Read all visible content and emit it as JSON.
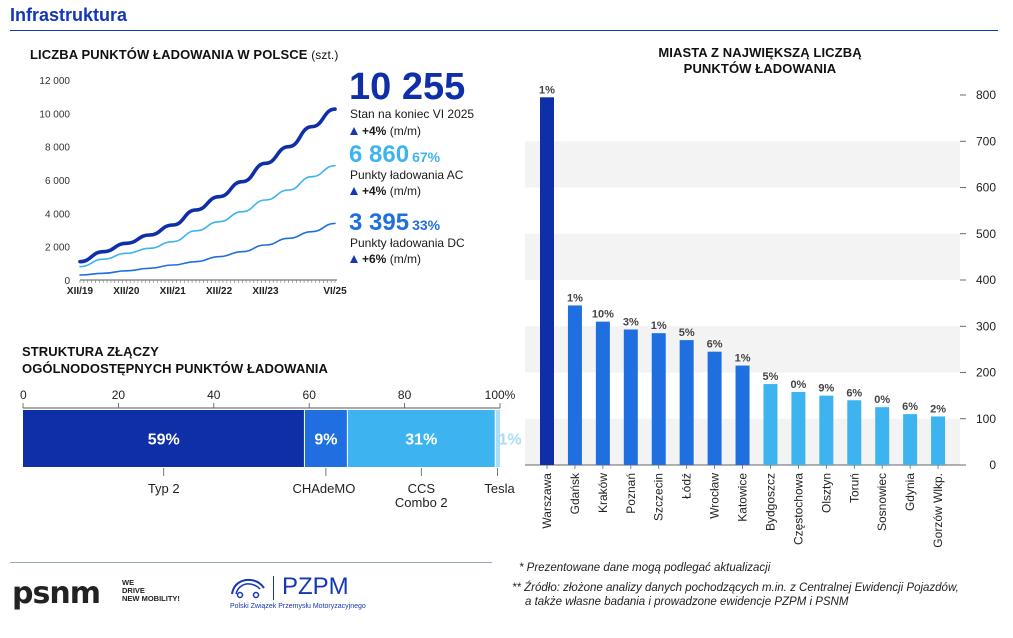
{
  "header": {
    "title": "Infrastruktura"
  },
  "line_section": {
    "title": "LICZBA PUNKTÓW ŁADOWANIA W POLSCE",
    "unit": "(szt.)"
  },
  "stats": {
    "total": {
      "value": "10 255",
      "label": "Stan na koniec VI 2025",
      "change": "+4%",
      "change_unit": "(m/m)"
    },
    "ac": {
      "value": "6 860",
      "share": "67%",
      "label": "Punkty ładowania AC",
      "change": "+4%",
      "change_unit": "(m/m)"
    },
    "dc": {
      "value": "3 395",
      "share": "33%",
      "label": "Punkty ładowania DC",
      "change": "+6%",
      "change_unit": "(m/m)"
    }
  },
  "connector_section": {
    "title_line1": "STRUKTURA ZŁĄCZY",
    "title_line2": "OGÓLNODOSTĘPNYCH PUNKTÓW ŁADOWANIA"
  },
  "cities_section": {
    "title_line1": "MIASTA Z NAJWIĘKSZĄ LICZBĄ",
    "title_line2": "PUNKTÓW ŁADOWANIA"
  },
  "footnotes": {
    "note1": "* Prezentowane dane mogą podlegać aktualizacji",
    "note2_line1": "** Źródło: złożone analizy danych pochodzących m.in. z Centralnej Ewidencji Pojazdów,",
    "note2_line2": "a także własne badania i prowadzone ewidencje PZPM i PSNM"
  },
  "logos": {
    "psnm": "psnm",
    "psnm_tag1": "WE",
    "psnm_tag2": "DRIVE",
    "psnm_tag3": "NEW MOBILITY!",
    "pzpm": "PZPM",
    "pzpm_sub": "Polski Związek Przemysłu Motoryzacyjnego"
  },
  "colors": {
    "dark_blue": "#0f2fa8",
    "mid_blue": "#1f6fe0",
    "light_blue": "#3db4ef",
    "pale_blue": "#a9ddf6",
    "accent": "#1437b4"
  },
  "chart_data": [
    {
      "type": "line",
      "title": "LICZBA PUNKTÓW ŁADOWANIA W POLSCE",
      "y_ticks": [
        "0",
        "2 000",
        "4 000",
        "6 000",
        "8 000",
        "10 000",
        "12 000"
      ],
      "ylim": [
        0,
        12000
      ],
      "x_tick_labels": [
        "XII/19",
        "XII/20",
        "XII/21",
        "XII/22",
        "XII/23",
        "VI/25"
      ],
      "x_range": [
        "2019-12",
        "2025-06"
      ],
      "series": [
        {
          "name": "Stan na koniec VI 2025",
          "color": "#0f2fa8",
          "x": [
            "2019-12",
            "2020-06",
            "2020-12",
            "2021-06",
            "2021-12",
            "2022-06",
            "2022-12",
            "2023-06",
            "2023-12",
            "2024-06",
            "2024-12",
            "2025-06"
          ],
          "values": [
            1100,
            1700,
            2200,
            2700,
            3300,
            4200,
            5000,
            5900,
            7000,
            8000,
            9200,
            10255
          ]
        },
        {
          "name": "Punkty ładowania AC",
          "color": "#3db4ef",
          "x": [
            "2019-12",
            "2020-06",
            "2020-12",
            "2021-06",
            "2021-12",
            "2022-06",
            "2022-12",
            "2023-06",
            "2023-12",
            "2024-06",
            "2024-12",
            "2025-06"
          ],
          "values": [
            800,
            1250,
            1600,
            1900,
            2300,
            2950,
            3500,
            4100,
            4800,
            5400,
            6200,
            6860
          ]
        },
        {
          "name": "Punkty ładowania DC",
          "color": "#1f6fe0",
          "x": [
            "2019-12",
            "2020-06",
            "2020-12",
            "2021-06",
            "2021-12",
            "2022-06",
            "2022-12",
            "2023-06",
            "2023-12",
            "2024-06",
            "2024-12",
            "2025-06"
          ],
          "values": [
            300,
            400,
            550,
            700,
            900,
            1100,
            1400,
            1700,
            2100,
            2500,
            2900,
            3395
          ]
        }
      ]
    },
    {
      "type": "bar",
      "title": "STRUKTURA ZŁĄCZY OGÓLNODOSTĘPNYCH PUNKTÓW ŁADOWANIA",
      "orientation": "stacked-horizontal",
      "x_ticks": [
        "0",
        "20",
        "40",
        "60",
        "80",
        "100%"
      ],
      "xlim": [
        0,
        100
      ],
      "categories": [
        "Typ 2",
        "CHAdeMO",
        "CCS Combo 2",
        "Tesla"
      ],
      "category_labels": [
        [
          "Typ 2"
        ],
        [
          "CHAdeMO"
        ],
        [
          "CCS",
          "Combo 2"
        ],
        [
          "Tesla"
        ]
      ],
      "values": [
        59,
        9,
        31,
        1
      ],
      "value_labels": [
        "59%",
        "9%",
        "31%",
        "1%"
      ],
      "colors": [
        "#0f2fa8",
        "#1f6fe0",
        "#3db4ef",
        "#a9ddf6"
      ]
    },
    {
      "type": "bar",
      "title": "MIASTA Z NAJWIĘKSZĄ LICZBĄ PUNKTÓW ŁADOWANIA",
      "y_ticks": [
        "0",
        "100",
        "200",
        "300",
        "400",
        "500",
        "600",
        "700",
        "800"
      ],
      "ylim": [
        0,
        800
      ],
      "categories": [
        "Warszawa",
        "Gdańsk",
        "Kraków",
        "Poznań",
        "Szczecin",
        "Łódź",
        "Wrocław",
        "Katowice",
        "Bydgoszcz",
        "Częstochowa",
        "Olsztyn",
        "Toruń",
        "Sosnowiec",
        "Gdynia",
        "Gorzów Wlkp."
      ],
      "values": [
        795,
        345,
        310,
        293,
        285,
        270,
        245,
        215,
        175,
        158,
        150,
        140,
        125,
        110,
        105
      ],
      "labels": [
        "1%",
        "1%",
        "10%",
        "3%",
        "1%",
        "5%",
        "6%",
        "1%",
        "5%",
        "0%",
        "9%",
        "6%",
        "0%",
        "6%",
        "2%"
      ],
      "colors": [
        "#0f2fa8",
        "#1f6fe0",
        "#1f6fe0",
        "#1f6fe0",
        "#1f6fe0",
        "#1f6fe0",
        "#1f6fe0",
        "#1f6fe0",
        "#3db4ef",
        "#3db4ef",
        "#3db4ef",
        "#3db4ef",
        "#3db4ef",
        "#3db4ef",
        "#3db4ef"
      ],
      "grid": "banded"
    }
  ]
}
